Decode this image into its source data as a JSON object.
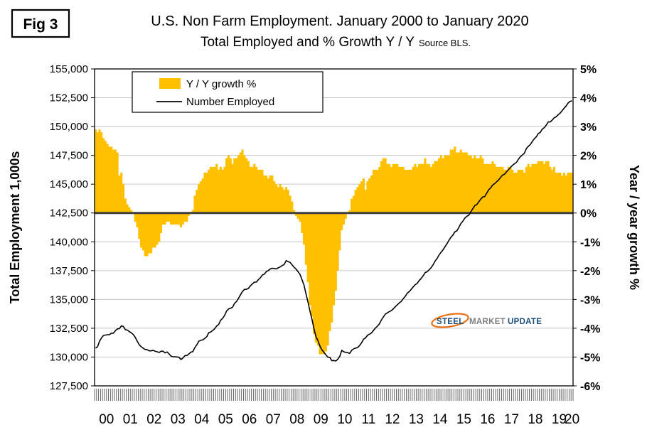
{
  "figure": {
    "tag": "Fig 3"
  },
  "title": {
    "line1": "U.S. Non Farm Employment. January 2000 to January 2020",
    "line2": "Total Employed and % Growth Y / Y",
    "source": "Source BLS."
  },
  "colors": {
    "bar": "#FFC000",
    "line": "#000000",
    "zero_line": "#3F3F3F",
    "gridline": "#C6C6C6"
  },
  "logo": {
    "steel": "STEEL",
    "market": "MARKET",
    "update": "UPDATE",
    "steel_color": "#1F4E79",
    "market_color": "#7F7F7F",
    "update_color": "#1F4E79",
    "swoosh_color": "#E8731A"
  },
  "chart_data": {
    "type": "combo",
    "x_unit": "month",
    "x_start": "2000-01",
    "x_end": "2020-01",
    "x_tick_labels": [
      "00",
      "01",
      "02",
      "03",
      "04",
      "05",
      "06",
      "07",
      "08",
      "09",
      "10",
      "11",
      "12",
      "13",
      "14",
      "15",
      "16",
      "17",
      "18",
      "19",
      "20"
    ],
    "left_axis": {
      "title": "Total Employment 1,000s",
      "min": 127500,
      "max": 155000,
      "step": 2500,
      "tick_labels": [
        "127,500",
        "130,000",
        "132,500",
        "135,000",
        "137,500",
        "140,000",
        "142,500",
        "145,000",
        "147,500",
        "150,000",
        "152,500",
        "155,000"
      ]
    },
    "right_axis": {
      "title": "Year / year growth %",
      "min": -6,
      "max": 5,
      "step": 1,
      "tick_labels": [
        "-6%",
        "-5%",
        "-4%",
        "-3%",
        "-2%",
        "-1%",
        "0%",
        "1%",
        "2%",
        "3%",
        "4%",
        "5%"
      ]
    },
    "series": [
      {
        "name": "Y / Y growth %",
        "type": "bar",
        "axis": "right",
        "color": "#FFC000",
        "values": [
          2.9,
          2.8,
          2.9,
          2.8,
          2.6,
          2.5,
          2.4,
          2.3,
          2.3,
          2.2,
          2.2,
          2.1,
          1.3,
          1.4,
          1.0,
          0.5,
          0.3,
          0.2,
          0.1,
          0.0,
          -0.3,
          -0.5,
          -0.9,
          -1.2,
          -1.3,
          -1.5,
          -1.5,
          -1.4,
          -1.4,
          -1.2,
          -1.2,
          -1.1,
          -1.0,
          -0.7,
          -0.4,
          -0.4,
          -0.3,
          -0.3,
          -0.4,
          -0.4,
          -0.4,
          -0.4,
          -0.4,
          -0.5,
          -0.4,
          -0.3,
          -0.3,
          -0.1,
          0.0,
          0.1,
          0.6,
          0.8,
          1.0,
          1.1,
          1.2,
          1.4,
          1.4,
          1.5,
          1.6,
          1.6,
          1.6,
          1.7,
          1.5,
          1.6,
          1.5,
          1.6,
          1.9,
          2.0,
          1.9,
          1.7,
          1.9,
          1.9,
          2.0,
          2.1,
          2.2,
          2.0,
          1.9,
          1.8,
          1.6,
          1.6,
          1.7,
          1.6,
          1.5,
          1.5,
          1.5,
          1.3,
          1.3,
          1.2,
          1.3,
          1.3,
          1.1,
          1.0,
          0.9,
          1.0,
          0.9,
          0.8,
          0.9,
          0.8,
          0.6,
          0.4,
          0.1,
          -0.1,
          -0.2,
          -0.3,
          -0.7,
          -1.1,
          -1.8,
          -2.4,
          -3.2,
          -3.6,
          -4.2,
          -4.5,
          -4.6,
          -4.9,
          -4.9,
          -4.9,
          -4.8,
          -4.6,
          -4.1,
          -3.8,
          -3.2,
          -2.7,
          -2.0,
          -1.3,
          -0.6,
          -0.4,
          -0.2,
          0.0,
          0.1,
          0.5,
          0.6,
          0.8,
          0.9,
          1.0,
          1.1,
          1.2,
          0.8,
          1.1,
          1.2,
          1.3,
          1.5,
          1.5,
          1.5,
          1.6,
          1.8,
          1.9,
          1.9,
          1.7,
          1.7,
          1.6,
          1.7,
          1.7,
          1.7,
          1.6,
          1.6,
          1.6,
          1.5,
          1.5,
          1.5,
          1.5,
          1.6,
          1.7,
          1.6,
          1.7,
          1.7,
          1.7,
          1.9,
          1.7,
          1.7,
          1.6,
          1.7,
          1.8,
          1.8,
          1.9,
          2.0,
          1.9,
          2.0,
          2.0,
          2.0,
          2.2,
          2.2,
          2.3,
          2.1,
          2.1,
          2.2,
          2.1,
          2.1,
          2.1,
          2.0,
          2.0,
          1.9,
          2.0,
          1.9,
          1.9,
          2.0,
          1.9,
          1.7,
          1.7,
          1.7,
          1.7,
          1.8,
          1.7,
          1.6,
          1.6,
          1.6,
          1.6,
          1.5,
          1.5,
          1.6,
          1.6,
          1.5,
          1.4,
          1.4,
          1.5,
          1.5,
          1.5,
          1.4,
          1.6,
          1.7,
          1.6,
          1.7,
          1.7,
          1.7,
          1.8,
          1.8,
          1.8,
          1.7,
          1.8,
          1.8,
          1.6,
          1.5,
          1.6,
          1.4,
          1.4,
          1.4,
          1.3,
          1.4,
          1.3,
          1.4,
          1.4,
          1.4
        ]
      },
      {
        "name": "Number Employed",
        "type": "line",
        "axis": "left",
        "color": "#000000",
        "values": [
          130781,
          130900,
          131380,
          131670,
          131880,
          131910,
          131940,
          131940,
          132070,
          132070,
          132290,
          132440,
          132469,
          132699,
          132660,
          132380,
          132340,
          132210,
          132100,
          131950,
          131710,
          131380,
          131070,
          130900,
          130770,
          130660,
          130630,
          130540,
          130540,
          130580,
          130500,
          130460,
          130400,
          130500,
          130510,
          130360,
          130440,
          130290,
          130080,
          130030,
          130020,
          130010,
          129980,
          129790,
          129920,
          130120,
          130140,
          130270,
          130420,
          130470,
          130810,
          131060,
          131370,
          131450,
          131490,
          131610,
          131770,
          132120,
          132180,
          132310,
          132450,
          132690,
          132830,
          133190,
          133360,
          133610,
          133990,
          134180,
          134240,
          134320,
          134660,
          134820,
          135100,
          135410,
          135690,
          135870,
          135880,
          135960,
          136180,
          136350,
          136500,
          136500,
          136710,
          136880,
          137120,
          137200,
          137420,
          137500,
          137640,
          137710,
          137680,
          137650,
          137740,
          137820,
          137940,
          138030,
          138365,
          138280,
          138210,
          137990,
          137800,
          137630,
          137410,
          137170,
          136710,
          136240,
          135470,
          134770,
          133980,
          133280,
          132460,
          131770,
          131420,
          130950,
          130630,
          130420,
          130190,
          129990,
          129970,
          129690,
          129700,
          129655,
          129810,
          130060,
          130580,
          130460,
          130400,
          130380,
          130320,
          130580,
          130710,
          130780,
          130820,
          131010,
          131240,
          131560,
          131660,
          131900,
          131980,
          132100,
          132320,
          132520,
          132680,
          132880,
          133230,
          133490,
          133740,
          133840,
          133950,
          134030,
          134190,
          134370,
          134540,
          134700,
          134830,
          135070,
          135270,
          135540,
          135680,
          135880,
          136090,
          136280,
          136390,
          136640,
          136830,
          137050,
          137330,
          137400,
          137570,
          137750,
          138000,
          138320,
          138550,
          138850,
          139090,
          139300,
          139570,
          139830,
          140140,
          140400,
          140590,
          140860,
          140950,
          141250,
          141580,
          141790,
          142060,
          142210,
          142310,
          142600,
          142870,
          143140,
          143230,
          143470,
          143700,
          143890,
          143920,
          144210,
          144510,
          144680,
          144920,
          145050,
          145210,
          145370,
          145590,
          145790,
          145870,
          146080,
          146250,
          146460,
          146640,
          146770,
          146890,
          147170,
          147390,
          147540,
          147700,
          148100,
          148290,
          148450,
          148720,
          148940,
          149110,
          149390,
          149500,
          149780,
          149900,
          150130,
          150400,
          150400,
          150560,
          150770,
          150850,
          151030,
          151160,
          151380,
          151590,
          151780,
          152040,
          152190,
          152234
        ]
      }
    ]
  }
}
